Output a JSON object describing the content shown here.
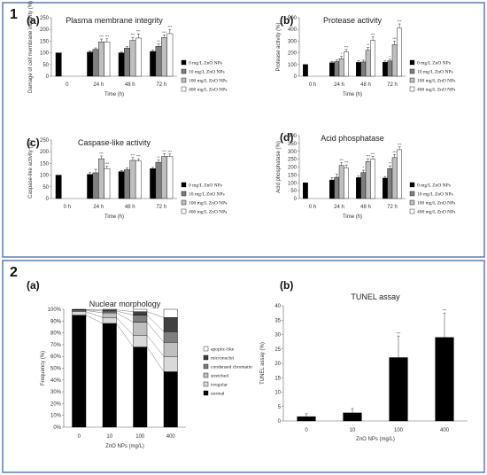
{
  "sections": [
    {
      "label": "1",
      "colors": {
        "border": "#5b7fb5"
      }
    },
    {
      "label": "2",
      "colors": {
        "border": "#5b7fb5"
      }
    }
  ],
  "legend_groups": {
    "zno": [
      "0 mg/L ZnO NPs",
      "10 mg/L ZnO NPs",
      "100 mg/L ZnO NPs",
      "400 mg/L ZnO NPs"
    ],
    "zno_colors": [
      "#000000",
      "#7f7f7f",
      "#bfbfbf",
      "#ffffff"
    ]
  },
  "chart_data": [
    {
      "id": "a1",
      "panel_label": "(a)",
      "type": "bar",
      "title": "Plasma membrane integrity",
      "xlabel": "Time (h)",
      "ylabel": "Damage of cell membrane integrity (%)",
      "ylim": [
        0,
        250
      ],
      "yticks": [
        0,
        50,
        100,
        150,
        200,
        250
      ],
      "categories": [
        "0",
        "24 h",
        "48 h",
        "72 h"
      ],
      "series": [
        {
          "name": "0 mg/L ZnO NPs",
          "values": [
            100,
            103,
            100,
            106
          ],
          "err": [
            0,
            5,
            4,
            5
          ],
          "sig": [
            "",
            "",
            "",
            ""
          ]
        },
        {
          "name": "10 mg/L ZnO NPs",
          "values": [
            null,
            115,
            120,
            128
          ],
          "err": [
            0,
            6,
            6,
            10
          ],
          "sig": [
            "",
            "",
            "",
            "**"
          ]
        },
        {
          "name": "100 mg/L ZnO NPs",
          "values": [
            null,
            147,
            153,
            165
          ],
          "err": [
            0,
            12,
            13,
            12
          ],
          "sig": [
            "",
            "***",
            "***",
            "***"
          ]
        },
        {
          "name": "400 mg/L ZnO NPs",
          "values": [
            null,
            146,
            163,
            182
          ],
          "err": [
            0,
            14,
            18,
            18
          ],
          "sig": [
            "",
            "***",
            "***",
            "***"
          ]
        }
      ],
      "legend": "right"
    },
    {
      "id": "b1",
      "panel_label": "(b)",
      "type": "bar",
      "title": "Protease activity",
      "xlabel": "Time (h)",
      "ylabel": "Protease activity (%)",
      "ylim": [
        0,
        500
      ],
      "yticks": [
        0,
        100,
        200,
        300,
        400,
        500
      ],
      "categories": [
        "0 h",
        "24 h",
        "48 h",
        "72 h"
      ],
      "series": [
        {
          "name": "0 mg/L ZnO NPs",
          "values": [
            100,
            115,
            118,
            120
          ],
          "err": [
            0,
            12,
            15,
            12
          ],
          "sig": [
            "",
            "",
            "",
            ""
          ]
        },
        {
          "name": "10 mg/L ZnO NPs",
          "values": [
            null,
            125,
            122,
            130
          ],
          "err": [
            0,
            15,
            15,
            15
          ],
          "sig": [
            "",
            "",
            "",
            "*"
          ]
        },
        {
          "name": "100 mg/L ZnO NPs",
          "values": [
            null,
            150,
            222,
            270
          ],
          "err": [
            0,
            20,
            25,
            30
          ],
          "sig": [
            "",
            "*",
            "**",
            "***"
          ]
        },
        {
          "name": "400 mg/L ZnO NPs",
          "values": [
            null,
            208,
            305,
            412
          ],
          "err": [
            0,
            20,
            30,
            35
          ],
          "sig": [
            "",
            "***",
            "***",
            "***"
          ]
        }
      ],
      "legend": "right"
    },
    {
      "id": "c1",
      "panel_label": "(c)",
      "type": "bar",
      "title": "Caspase-like activity",
      "xlabel": "Time (h)",
      "ylabel": "Caspase-like activity (%)",
      "ylim": [
        0,
        250
      ],
      "yticks": [
        0,
        50,
        100,
        150,
        200,
        250
      ],
      "categories": [
        "0 h",
        "24 h",
        "48 h",
        "72 h"
      ],
      "series": [
        {
          "name": "0 mg/L ZnO NPs",
          "values": [
            100,
            103,
            115,
            128
          ],
          "err": [
            0,
            8,
            5,
            5
          ],
          "sig": [
            "",
            "",
            "",
            ""
          ]
        },
        {
          "name": "10 mg/L ZnO NPs",
          "values": [
            null,
            110,
            123,
            155
          ],
          "err": [
            0,
            15,
            8,
            10
          ],
          "sig": [
            "",
            "",
            "",
            "**"
          ]
        },
        {
          "name": "100 mg/L ZnO NPs",
          "values": [
            null,
            170,
            163,
            180
          ],
          "err": [
            0,
            12,
            12,
            12
          ],
          "sig": [
            "",
            "***",
            "***",
            "***"
          ]
        },
        {
          "name": "400 mg/L ZnO NPs",
          "values": [
            null,
            128,
            160,
            180
          ],
          "err": [
            0,
            10,
            10,
            10
          ],
          "sig": [
            "",
            "***",
            "***",
            "***"
          ]
        }
      ],
      "legend": "right"
    },
    {
      "id": "d1",
      "panel_label": "(d)",
      "type": "bar",
      "title": "Acid phosphatase",
      "xlabel": "Time (h)",
      "ylabel": "Acid phosphatase (%)",
      "ylim": [
        0,
        400
      ],
      "yticks": [
        0,
        50,
        100,
        150,
        200,
        250,
        300,
        350,
        400
      ],
      "categories": [
        "0 h",
        "24 h",
        "48 h",
        "72 h"
      ],
      "series": [
        {
          "name": "0 mg/L ZnO NPs",
          "values": [
            100,
            118,
            133,
            130
          ],
          "err": [
            0,
            15,
            10,
            10
          ],
          "sig": [
            "",
            "",
            "",
            ""
          ]
        },
        {
          "name": "10 mg/L ZnO NPs",
          "values": [
            null,
            135,
            165,
            190
          ],
          "err": [
            0,
            20,
            15,
            18
          ],
          "sig": [
            "",
            "",
            "*",
            "**"
          ]
        },
        {
          "name": "100 mg/L ZnO NPs",
          "values": [
            null,
            210,
            235,
            260
          ],
          "err": [
            0,
            18,
            18,
            20
          ],
          "sig": [
            "",
            "***",
            "***",
            "***"
          ]
        },
        {
          "name": "400 mg/L ZnO NPs",
          "values": [
            null,
            195,
            250,
            310
          ],
          "err": [
            0,
            18,
            18,
            18
          ],
          "sig": [
            "",
            "***",
            "***",
            "***"
          ]
        }
      ],
      "legend": "right"
    },
    {
      "id": "a2",
      "panel_label": "(a)",
      "type": "bar",
      "stacked": true,
      "title": "Nuclear morphology",
      "xlabel": "ZnO NPs (mg/L)",
      "ylabel": "Frequency (%)",
      "ylim": [
        0,
        100
      ],
      "yticks": [
        0,
        10,
        20,
        30,
        40,
        50,
        60,
        70,
        80,
        90,
        100
      ],
      "ytick_suffix": "%",
      "categories": [
        "0",
        "10",
        "100",
        "400"
      ],
      "series": [
        {
          "name": "normal",
          "color": "#000000",
          "values": [
            95,
            88,
            68,
            47
          ]
        },
        {
          "name": "irregular",
          "color": "#d9d9d9",
          "values": [
            3,
            5,
            10,
            13
          ]
        },
        {
          "name": "stretched",
          "color": "#bfbfbf",
          "values": [
            1,
            4,
            11,
            12
          ]
        },
        {
          "name": "condensed chromatin",
          "color": "#7f7f7f",
          "values": [
            0.5,
            1.5,
            6,
            9
          ]
        },
        {
          "name": "micronuclei",
          "color": "#404040",
          "values": [
            0.3,
            1,
            3,
            12
          ]
        },
        {
          "name": "apoptic-like",
          "color": "#ffffff",
          "values": [
            0.2,
            0.5,
            2,
            7
          ]
        }
      ],
      "legend": "right"
    },
    {
      "id": "b2",
      "panel_label": "(b)",
      "type": "bar",
      "title": "TUNEL assay",
      "xlabel": "ZnO NPs (mg/L)",
      "ylabel": "TUNEL assay (%)",
      "ylim": [
        0,
        40
      ],
      "yticks": [
        0,
        5,
        10,
        15,
        20,
        25,
        30,
        35,
        40
      ],
      "categories": [
        "0",
        "10",
        "100",
        "400"
      ],
      "series": [
        {
          "name": "",
          "color": "#000000",
          "values": [
            1.5,
            2.8,
            22,
            29
          ],
          "err": [
            1.0,
            1.5,
            7.5,
            8.5
          ],
          "sig": [
            "",
            "",
            "***",
            "***"
          ]
        }
      ]
    }
  ]
}
